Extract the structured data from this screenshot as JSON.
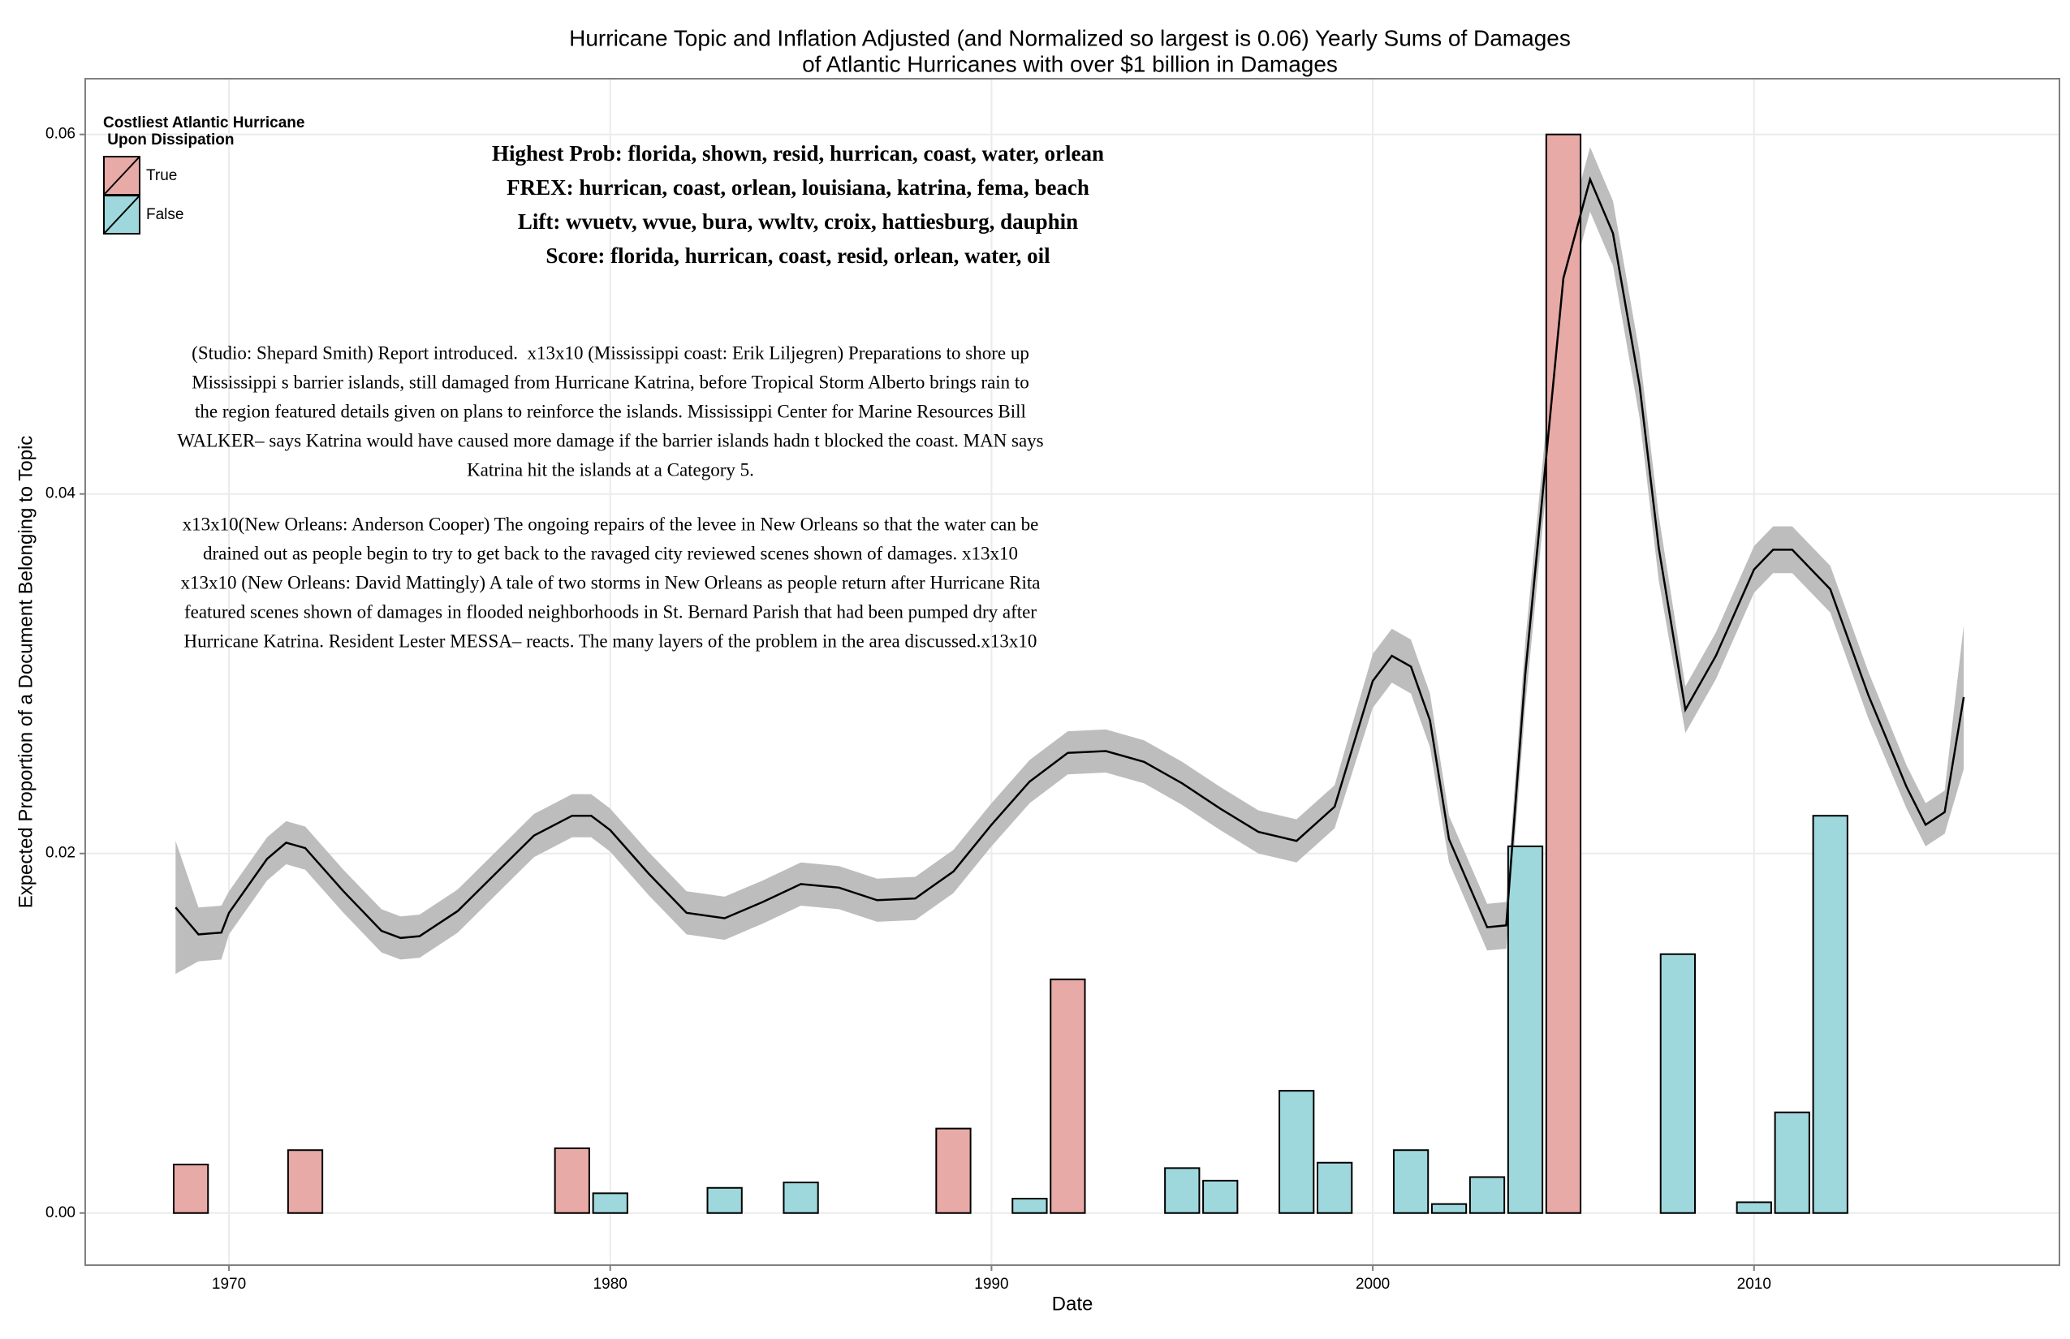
{
  "chart_data": {
    "type": "bar",
    "title": [
      "Hurricane Topic and Inflation Adjusted (and Normalized so largest is 0.06) Yearly Sums of Damages",
      "of Atlantic Hurricanes with over $1 billion in Damages"
    ],
    "x_label": "Date",
    "y_label": "Expected Proportion of a Document Belonging to Topic",
    "xlim": [
      1966.23,
      2018.01
    ],
    "ylim": [
      -0.0029,
      0.0631
    ],
    "xticks": [
      1970,
      1980,
      1990,
      2000,
      2010
    ],
    "yticks": [
      {
        "value": 0,
        "label": "0.00"
      },
      {
        "value": 0.02,
        "label": "0.02"
      },
      {
        "value": 0.04,
        "label": "0.04"
      },
      {
        "value": 0.06,
        "label": "0.06"
      }
    ],
    "grid": true,
    "legend_title": [
      "Costliest Atlantic Hurricane",
      " Upon Dissipation"
    ],
    "legend_position": "top-left",
    "series": [
      {
        "name": "True",
        "color": "#e8aaa6",
        "x": [
          1969,
          1972,
          1979,
          1989,
          1992,
          2005
        ],
        "values": [
          0.0027,
          0.0035,
          0.0036,
          0.0047,
          0.013,
          0.06
        ]
      },
      {
        "name": "False",
        "color": "#9ed8dc",
        "x": [
          1980,
          1983,
          1985,
          1991,
          1995,
          1996,
          1998,
          1999,
          2001,
          2002,
          2003,
          2004,
          2008,
          2010,
          2011,
          2012
        ],
        "values": [
          0.0011,
          0.0014,
          0.0017,
          0.0008,
          0.0025,
          0.0018,
          0.0068,
          0.0028,
          0.0035,
          0.0005,
          0.002,
          0.0204,
          0.0144,
          0.0006,
          0.0056,
          0.0221
        ]
      }
    ],
    "smooth": {
      "color": "#000000",
      "band_color": "#bdbdbd",
      "x": [
        1968.6,
        1969.2,
        1969.8,
        1970,
        1971,
        1971.5,
        1972,
        1973,
        1974,
        1974.5,
        1975,
        1976,
        1977,
        1978,
        1979,
        1979.5,
        1980,
        1981,
        1982,
        1983,
        1984,
        1985,
        1986,
        1987,
        1988,
        1989,
        1990,
        1991,
        1992,
        1993,
        1994,
        1995,
        1996,
        1997,
        1998,
        1999,
        2000,
        2000.5,
        2001,
        2001.5,
        2002,
        2003,
        2003.5,
        2004,
        2004.5,
        2005,
        2005.7,
        2006.3,
        2007,
        2007.5,
        2008.2,
        2009,
        2010,
        2010.5,
        2011,
        2012,
        2013,
        2014,
        2014.5,
        2015,
        2015.5
      ],
      "values": [
        0.017,
        0.0155,
        0.0156,
        0.0167,
        0.0197,
        0.0206,
        0.0203,
        0.0179,
        0.0157,
        0.0153,
        0.0154,
        0.0168,
        0.0189,
        0.021,
        0.0221,
        0.0221,
        0.0213,
        0.0189,
        0.0167,
        0.0164,
        0.0173,
        0.0183,
        0.0181,
        0.0174,
        0.0175,
        0.019,
        0.0216,
        0.024,
        0.0256,
        0.0257,
        0.0251,
        0.0239,
        0.0225,
        0.0212,
        0.0207,
        0.0226,
        0.0296,
        0.031,
        0.0304,
        0.0274,
        0.0208,
        0.0159,
        0.016,
        0.03,
        0.041,
        0.052,
        0.0575,
        0.0545,
        0.046,
        0.037,
        0.028,
        0.031,
        0.0358,
        0.0369,
        0.0369,
        0.0347,
        0.0288,
        0.0237,
        0.0216,
        0.0223,
        0.0287
      ],
      "lower": [
        0.0133,
        0.014,
        0.0141,
        0.0155,
        0.0185,
        0.0194,
        0.0191,
        0.0167,
        0.0145,
        0.0141,
        0.0142,
        0.0156,
        0.0177,
        0.0198,
        0.0209,
        0.0209,
        0.0201,
        0.0177,
        0.0155,
        0.0152,
        0.0161,
        0.0171,
        0.0169,
        0.0162,
        0.0163,
        0.0178,
        0.0204,
        0.0228,
        0.0244,
        0.0245,
        0.0239,
        0.0227,
        0.0213,
        0.02,
        0.0195,
        0.0214,
        0.0281,
        0.0295,
        0.0289,
        0.0259,
        0.0195,
        0.0146,
        0.0147,
        0.0282,
        0.0392,
        0.0502,
        0.0557,
        0.0527,
        0.0442,
        0.0352,
        0.0267,
        0.0297,
        0.0345,
        0.0356,
        0.0356,
        0.0334,
        0.0275,
        0.0225,
        0.0204,
        0.0211,
        0.0247
      ],
      "upper": [
        0.0207,
        0.017,
        0.0171,
        0.0179,
        0.0209,
        0.0218,
        0.0215,
        0.0191,
        0.0169,
        0.0165,
        0.0166,
        0.018,
        0.0201,
        0.0222,
        0.0233,
        0.0233,
        0.0225,
        0.0201,
        0.0179,
        0.0176,
        0.0185,
        0.0195,
        0.0193,
        0.0186,
        0.0187,
        0.0202,
        0.0228,
        0.0252,
        0.0268,
        0.0269,
        0.0263,
        0.0251,
        0.0237,
        0.0224,
        0.0219,
        0.0238,
        0.0311,
        0.0325,
        0.0319,
        0.0289,
        0.0221,
        0.0172,
        0.0173,
        0.0318,
        0.0428,
        0.0538,
        0.0593,
        0.0563,
        0.0478,
        0.0388,
        0.0293,
        0.0323,
        0.0371,
        0.0382,
        0.0382,
        0.036,
        0.0301,
        0.0249,
        0.0228,
        0.0235,
        0.0327
      ]
    },
    "annotations": {
      "topic_words": [
        "Highest Prob: florida, shown, resid, hurrican, coast, water, orlean",
        "FREX: hurrican, coast, orlean, louisiana, katrina, fema, beach",
        "Lift: wvuetv, wvue, bura, wwltv, croix, hattiesburg, dauphin",
        "Score: florida, hurrican, coast, resid, orlean, water, oil"
      ],
      "paragraphs": [
        [
          "(Studio: Shepard Smith) Report introduced.  x13x10 (Mississippi coast: Erik Liljegren) Preparations to shore up",
          "Mississippi s barrier islands, still damaged from Hurricane Katrina, before Tropical Storm Alberto brings rain to",
          "the region featured details given on plans to reinforce the islands. Mississippi Center for Marine Resources Bill",
          "WALKER– says Katrina would have caused more damage if the barrier islands hadn t blocked the coast. MAN says",
          "Katrina hit the islands at a Category 5."
        ],
        [
          "x13x10(New Orleans: Anderson Cooper) The ongoing repairs of the levee in New Orleans so that the water can be",
          "drained out as people begin to try to get back to the ravaged city reviewed scenes shown of damages. x13x10",
          "x13x10 (New Orleans: David Mattingly) A tale of two storms in New Orleans as people return after Hurricane Rita",
          "featured scenes shown of damages in flooded neighborhoods in St. Bernard Parish that had been pumped dry after",
          "Hurricane Katrina. Resident Lester MESSA– reacts. The many layers of the problem in the area discussed.x13x10"
        ]
      ]
    }
  }
}
